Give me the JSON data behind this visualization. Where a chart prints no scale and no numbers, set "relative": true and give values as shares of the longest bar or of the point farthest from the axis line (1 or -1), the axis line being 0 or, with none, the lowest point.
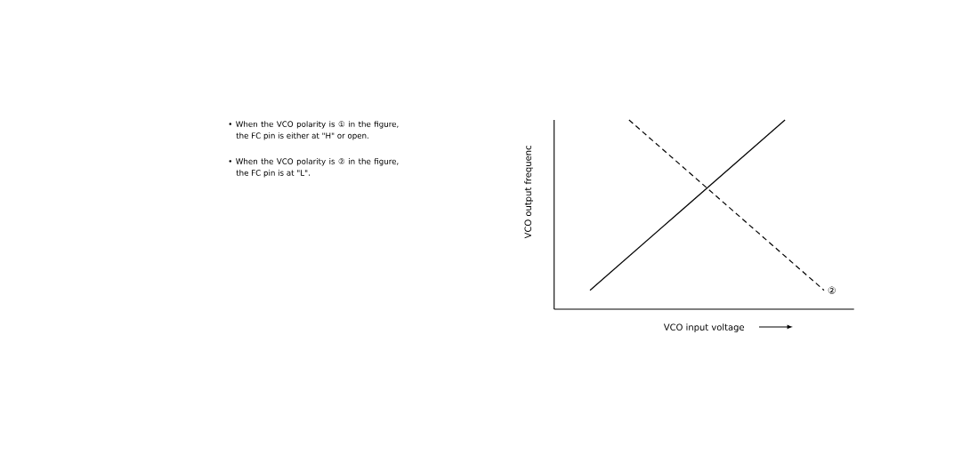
{
  "chart_data": {
    "type": "line",
    "relative": true,
    "xlabel": "VCO input voltage",
    "ylabel": "VCO output frequenc",
    "annotations": [
      "• When the VCO polarity is ① in the figure, the FC pin is either at \"H\" or open.",
      "• When the VCO polarity is ② in the figure, the FC pin is at \"L\"."
    ],
    "categories": [
      null,
      null,
      null,
      null,
      null,
      null,
      null
    ],
    "series": [
      {
        "color": "#000000",
        "line_style": "solid",
        "values": [
          0.1,
          0.28,
          0.46,
          0.64,
          0.82,
          1,
          null
        ]
      },
      {
        "name": "②",
        "color": "#000000",
        "line_style": "dashed",
        "values": [
          null,
          1,
          0.82,
          0.64,
          0.46,
          0.28,
          0.1
        ]
      }
    ]
  }
}
